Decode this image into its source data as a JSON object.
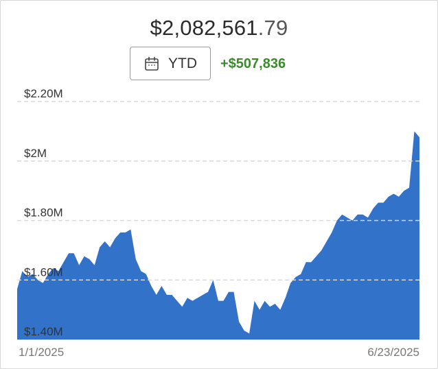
{
  "header": {
    "balance_main": "$2,082,561",
    "balance_cents": ".79",
    "period_label": "YTD",
    "period_icon": "calendar-icon",
    "change": "+$507,836",
    "change_color": "#3a8a2a"
  },
  "chart_data": {
    "type": "area",
    "color": "#3272c8",
    "grid": true,
    "ylim": [
      1.4,
      2.2
    ],
    "yticks": [
      {
        "value": 2.2,
        "label": "$2.20M"
      },
      {
        "value": 2.0,
        "label": "$2M"
      },
      {
        "value": 1.8,
        "label": "$1.80M"
      },
      {
        "value": 1.6,
        "label": "$1.60M"
      },
      {
        "value": 1.4,
        "label": "$1.40M"
      }
    ],
    "x_labels": [
      "1/1/2025",
      "6/23/2025"
    ],
    "values": [
      1.57,
      1.63,
      1.61,
      1.62,
      1.6,
      1.59,
      1.62,
      1.64,
      1.63,
      1.66,
      1.69,
      1.69,
      1.65,
      1.68,
      1.67,
      1.65,
      1.71,
      1.73,
      1.71,
      1.74,
      1.76,
      1.76,
      1.77,
      1.67,
      1.63,
      1.62,
      1.58,
      1.55,
      1.58,
      1.55,
      1.55,
      1.53,
      1.51,
      1.54,
      1.53,
      1.54,
      1.55,
      1.56,
      1.6,
      1.53,
      1.53,
      1.56,
      1.56,
      1.46,
      1.43,
      1.42,
      1.53,
      1.5,
      1.53,
      1.51,
      1.52,
      1.5,
      1.54,
      1.59,
      1.61,
      1.62,
      1.66,
      1.66,
      1.68,
      1.7,
      1.73,
      1.76,
      1.8,
      1.82,
      1.81,
      1.8,
      1.82,
      1.82,
      1.81,
      1.84,
      1.86,
      1.86,
      1.88,
      1.89,
      1.88,
      1.9,
      1.91,
      2.1,
      2.08
    ]
  }
}
